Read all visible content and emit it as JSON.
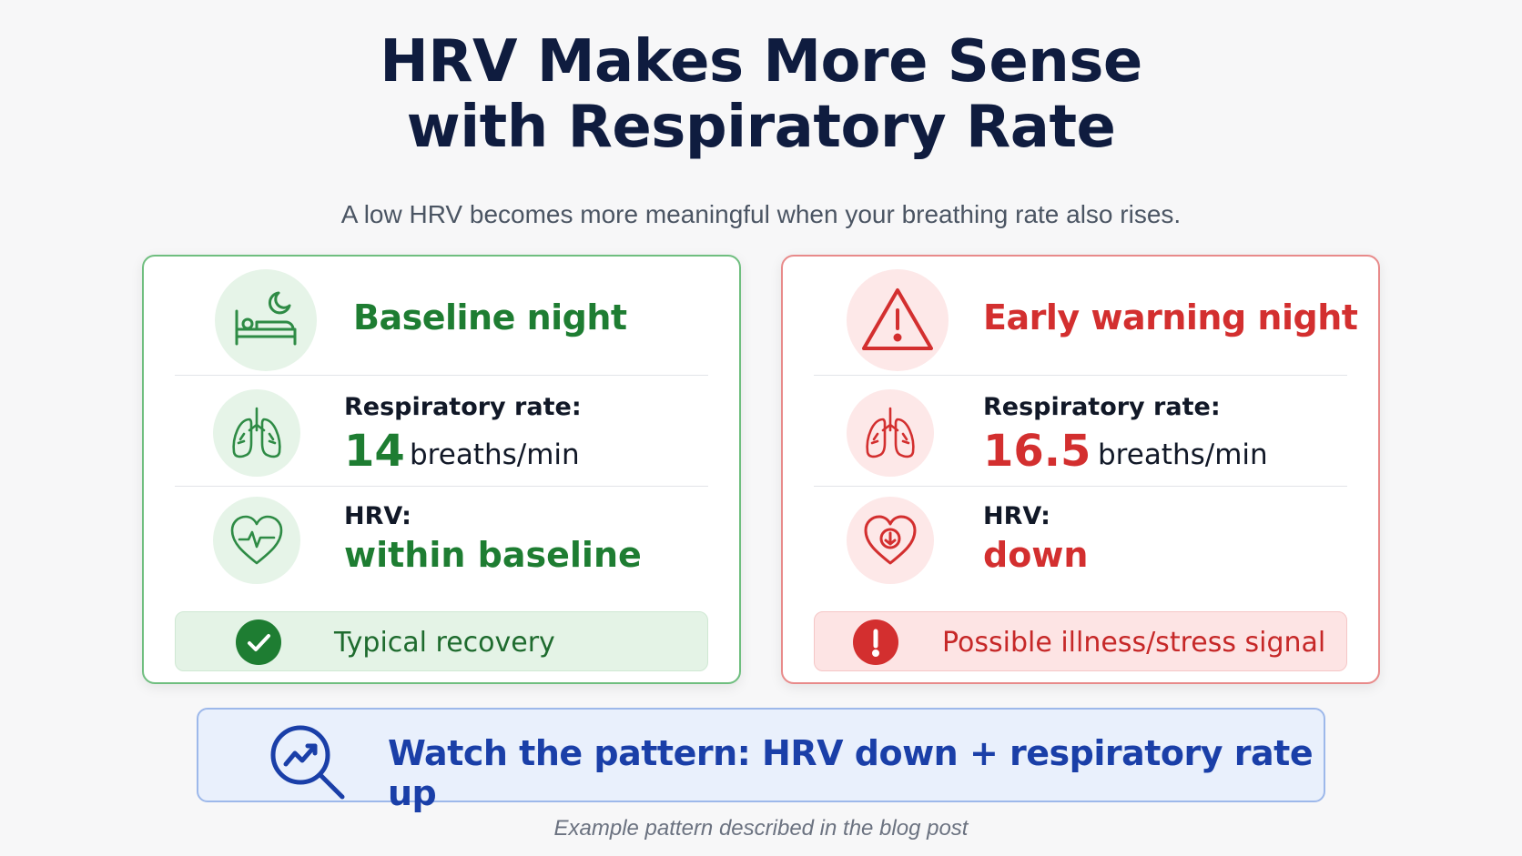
{
  "title": {
    "line1": "HRV Makes More Sense",
    "line2": "with Respiratory Rate"
  },
  "subtitle": "A low HRV becomes more meaningful when your breathing rate also rises.",
  "cards": {
    "baseline": {
      "heading": "Baseline night",
      "heading_icon": "bed-moon-icon",
      "resp_label": "Respiratory rate:",
      "resp_value": "14",
      "resp_unit": "breaths/min",
      "resp_icon": "lungs-icon",
      "hrv_label": "HRV:",
      "hrv_value": "within baseline",
      "hrv_icon": "heart-pulse-icon",
      "status_text": "Typical recovery",
      "status_icon": "check-circle-icon",
      "accent": "#1e7d32"
    },
    "warning": {
      "heading": "Early warning night",
      "heading_icon": "warning-triangle-icon",
      "resp_label": "Respiratory rate:",
      "resp_value": "16.5",
      "resp_unit": "breaths/min",
      "resp_icon": "lungs-icon",
      "hrv_label": "HRV:",
      "hrv_value": "down",
      "hrv_icon": "heart-down-arrow-icon",
      "status_text": "Possible illness/stress signal",
      "status_icon": "exclamation-circle-icon",
      "accent": "#d32f2f"
    }
  },
  "banner": {
    "text": "Watch the pattern: HRV down + respiratory rate up",
    "icon": "magnifier-trend-icon",
    "accent": "#1a3fa8"
  },
  "footnote": "Example pattern described in the blog post"
}
